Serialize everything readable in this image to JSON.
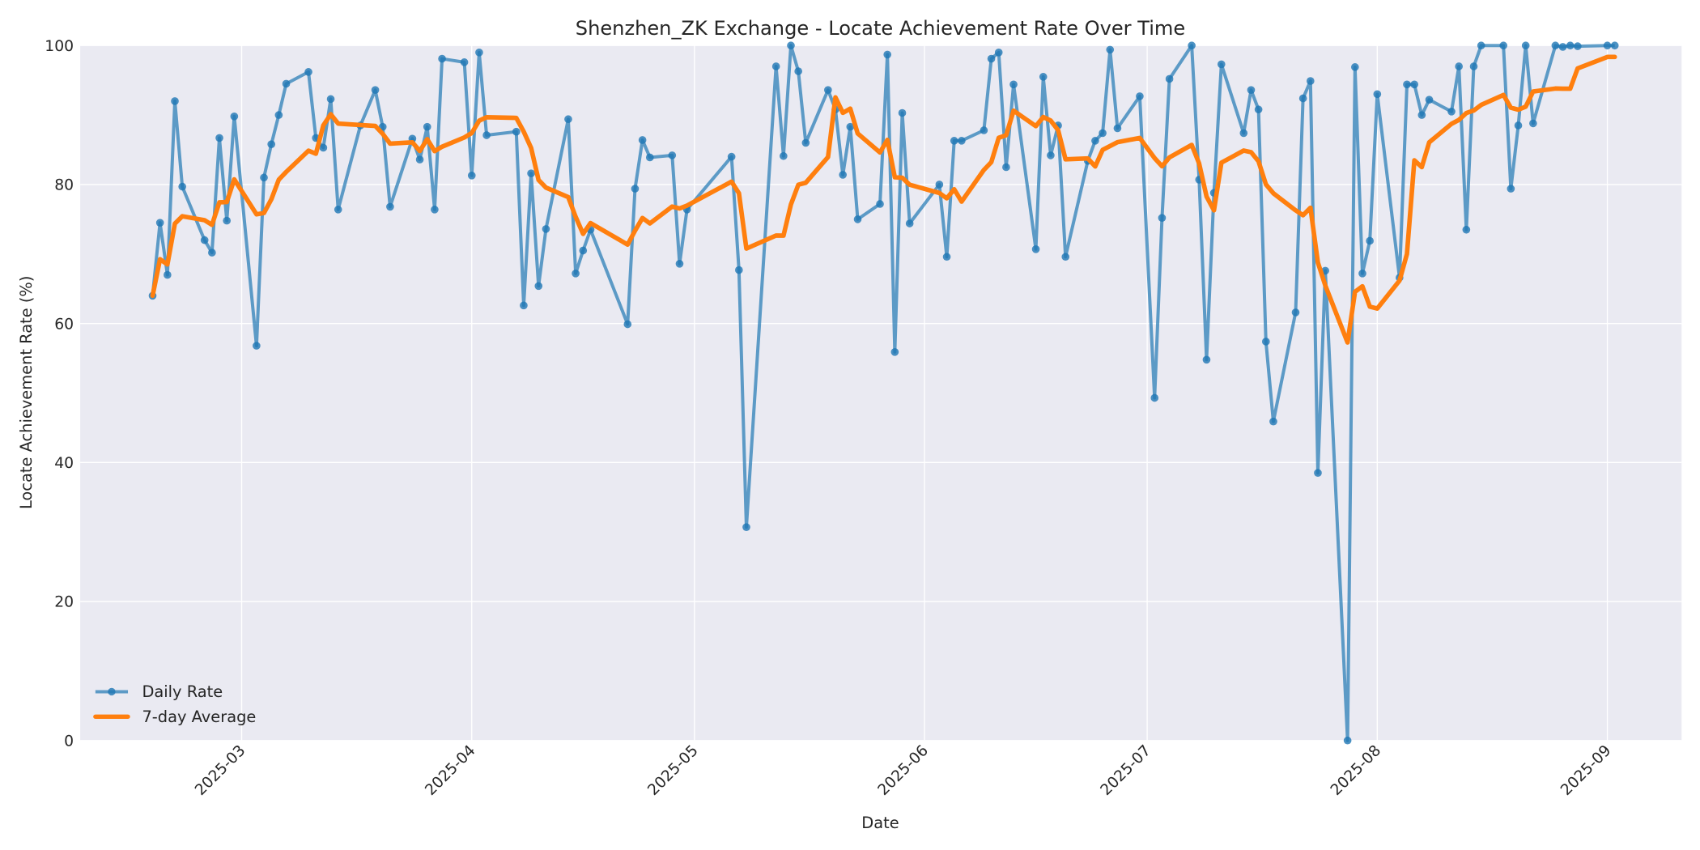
{
  "chart_data": {
    "type": "line",
    "title": "Shenzhen_ZK Exchange - Locate Achievement Rate Over Time",
    "xlabel": "Date",
    "ylabel": "Locate Achievement Rate (%)",
    "xlim": [
      "2025-02-07",
      "2025-09-11"
    ],
    "ylim": [
      0,
      100
    ],
    "yticks": [
      0,
      20,
      40,
      60,
      80,
      100
    ],
    "xticks": [
      "2025-03",
      "2025-04",
      "2025-05",
      "2025-06",
      "2025-07",
      "2025-08",
      "2025-09"
    ],
    "grid": true,
    "legend_position": "lower-left",
    "colors": {
      "daily": "#1f77b4",
      "average": "#ff7f0e",
      "background": "#eaeaf2",
      "grid": "#ffffff"
    },
    "series": [
      {
        "name": "Daily Rate",
        "style": "line-with-markers",
        "x": [
          "2025-02-17",
          "2025-02-18",
          "2025-02-19",
          "2025-02-20",
          "2025-02-21",
          "2025-02-24",
          "2025-02-25",
          "2025-02-26",
          "2025-02-27",
          "2025-02-28",
          "2025-03-03",
          "2025-03-04",
          "2025-03-05",
          "2025-03-06",
          "2025-03-07",
          "2025-03-10",
          "2025-03-11",
          "2025-03-12",
          "2025-03-13",
          "2025-03-14",
          "2025-03-17",
          "2025-03-19",
          "2025-03-20",
          "2025-03-21",
          "2025-03-24",
          "2025-03-25",
          "2025-03-26",
          "2025-03-27",
          "2025-03-28",
          "2025-03-31",
          "2025-04-01",
          "2025-04-02",
          "2025-04-03",
          "2025-04-07",
          "2025-04-08",
          "2025-04-09",
          "2025-04-10",
          "2025-04-11",
          "2025-04-14",
          "2025-04-15",
          "2025-04-16",
          "2025-04-17",
          "2025-04-22",
          "2025-04-23",
          "2025-04-24",
          "2025-04-25",
          "2025-04-28",
          "2025-04-29",
          "2025-04-30",
          "2025-05-06",
          "2025-05-07",
          "2025-05-08",
          "2025-05-12",
          "2025-05-13",
          "2025-05-14",
          "2025-05-15",
          "2025-05-16",
          "2025-05-19",
          "2025-05-20",
          "2025-05-21",
          "2025-05-22",
          "2025-05-23",
          "2025-05-26",
          "2025-05-27",
          "2025-05-28",
          "2025-05-29",
          "2025-05-30",
          "2025-06-03",
          "2025-06-04",
          "2025-06-05",
          "2025-06-06",
          "2025-06-09",
          "2025-06-10",
          "2025-06-11",
          "2025-06-12",
          "2025-06-13",
          "2025-06-16",
          "2025-06-17",
          "2025-06-18",
          "2025-06-19",
          "2025-06-20",
          "2025-06-23",
          "2025-06-24",
          "2025-06-25",
          "2025-06-26",
          "2025-06-27",
          "2025-06-30",
          "2025-07-02",
          "2025-07-03",
          "2025-07-04",
          "2025-07-07",
          "2025-07-08",
          "2025-07-09",
          "2025-07-10",
          "2025-07-11",
          "2025-07-14",
          "2025-07-15",
          "2025-07-16",
          "2025-07-17",
          "2025-07-18",
          "2025-07-21",
          "2025-07-22",
          "2025-07-23",
          "2025-07-24",
          "2025-07-25",
          "2025-07-28",
          "2025-07-29",
          "2025-07-30",
          "2025-07-31",
          "2025-08-01",
          "2025-08-04",
          "2025-08-05",
          "2025-08-06",
          "2025-08-07",
          "2025-08-08",
          "2025-08-11",
          "2025-08-12",
          "2025-08-13",
          "2025-08-14",
          "2025-08-15",
          "2025-08-18",
          "2025-08-19",
          "2025-08-20",
          "2025-08-21",
          "2025-08-22",
          "2025-08-25",
          "2025-08-26",
          "2025-08-27",
          "2025-08-28",
          "2025-09-01",
          "2025-09-02"
        ],
        "values": [
          64.0,
          74.5,
          67.0,
          92.0,
          79.7,
          72.0,
          70.2,
          86.7,
          74.8,
          89.8,
          56.8,
          81.0,
          85.8,
          90.0,
          94.5,
          96.2,
          86.7,
          85.3,
          92.3,
          76.4,
          88.5,
          93.6,
          88.3,
          76.8,
          86.6,
          83.6,
          88.3,
          76.4,
          98.1,
          97.6,
          81.3,
          99.0,
          87.1,
          87.6,
          62.6,
          81.6,
          65.4,
          73.6,
          89.4,
          67.2,
          70.5,
          73.5,
          59.9,
          79.4,
          86.4,
          83.9,
          84.2,
          68.6,
          76.4,
          84.0,
          67.7,
          30.7,
          97.0,
          84.1,
          100.0,
          96.3,
          86.0,
          93.6,
          90.8,
          81.4,
          88.3,
          75.0,
          77.2,
          98.7,
          55.9,
          90.3,
          74.4,
          80.0,
          69.6,
          86.3,
          86.3,
          87.8,
          98.1,
          99.0,
          82.5,
          94.4,
          70.7,
          95.5,
          84.2,
          88.5,
          69.6,
          83.4,
          86.3,
          87.4,
          99.4,
          88.1,
          92.7,
          49.3,
          75.2,
          95.2,
          100.0,
          80.7,
          54.8,
          78.8,
          97.3,
          87.4,
          93.6,
          90.8,
          57.4,
          45.9,
          61.6,
          92.4,
          94.9,
          38.5,
          67.6,
          0.0,
          96.9,
          67.2,
          71.9,
          93.0,
          66.6,
          94.4,
          94.4,
          90.0,
          92.2,
          90.5,
          97.0,
          73.5,
          97.0,
          100.0,
          100.0,
          79.4,
          88.5,
          100.0,
          88.8,
          100.0,
          99.8,
          100.0,
          99.9,
          100.0,
          100.0
        ]
      },
      {
        "name": "7-day Average",
        "style": "line",
        "rolling_window": 7,
        "source": "Daily Rate"
      }
    ]
  }
}
